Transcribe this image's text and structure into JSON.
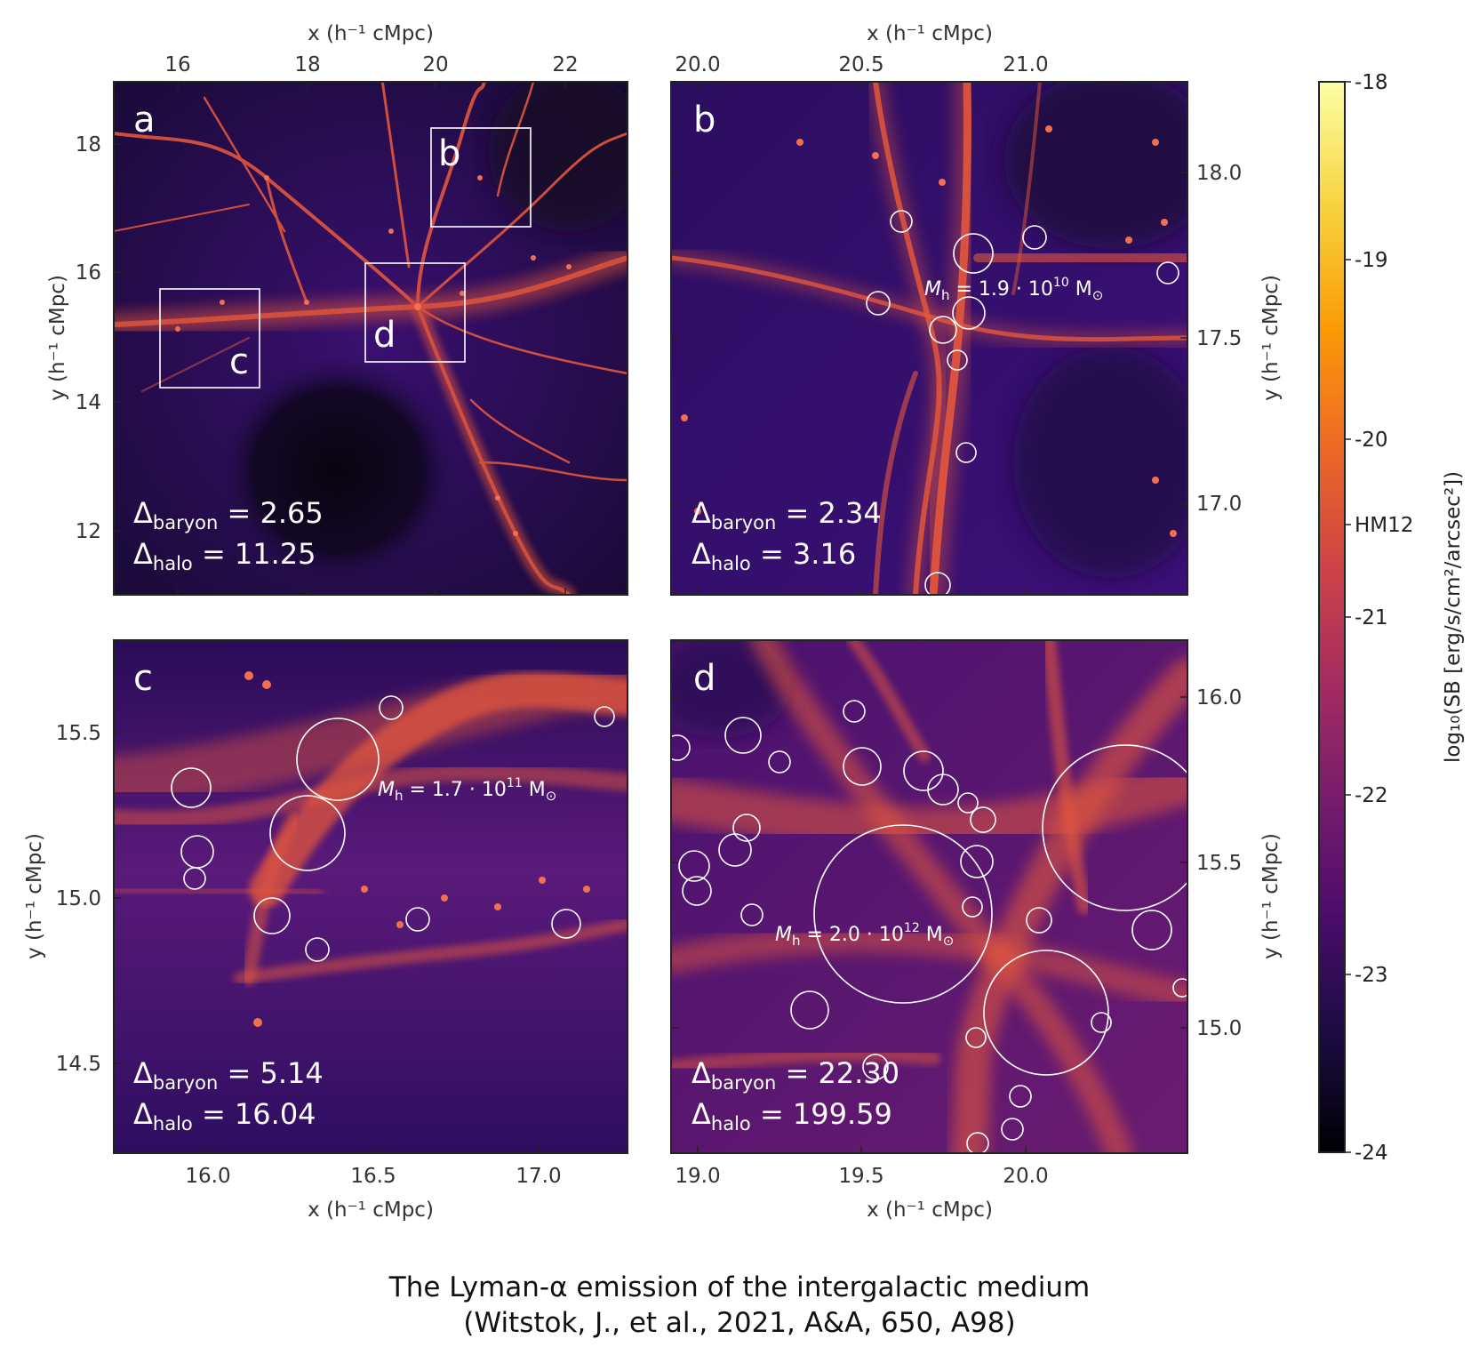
{
  "axis_labels": {
    "x": "x (h⁻¹ cMpc)",
    "y": "y (h⁻¹ cMpc)"
  },
  "panels": {
    "a": {
      "letter": "a",
      "x_ticks": [
        "16",
        "18",
        "20",
        "22"
      ],
      "y_ticks": [
        "18",
        "16",
        "14",
        "12"
      ],
      "delta_baryon": "2.65",
      "delta_halo": "11.25",
      "box_labels": [
        "b",
        "c",
        "d"
      ]
    },
    "b": {
      "letter": "b",
      "x_ticks": [
        "20.0",
        "20.5",
        "21.0"
      ],
      "y_ticks": [
        "18.0",
        "17.5",
        "17.0"
      ],
      "delta_baryon": "2.34",
      "delta_halo": "3.16",
      "mass_mantissa": "1.9",
      "mass_exponent": "10"
    },
    "c": {
      "letter": "c",
      "x_ticks": [
        "16.0",
        "16.5",
        "17.0"
      ],
      "y_ticks": [
        "15.5",
        "15.0",
        "14.5"
      ],
      "delta_baryon": "5.14",
      "delta_halo": "16.04",
      "mass_mantissa": "1.7",
      "mass_exponent": "11"
    },
    "d": {
      "letter": "d",
      "x_ticks": [
        "19.0",
        "19.5",
        "20.0"
      ],
      "y_ticks": [
        "16.0",
        "15.5",
        "15.0"
      ],
      "delta_baryon": "22.30",
      "delta_halo": "199.59",
      "mass_mantissa": "2.0",
      "mass_exponent": "12"
    }
  },
  "colorbar": {
    "label": "log₁₀(SB [erg/s/cm²/arcsec²])",
    "ticks": [
      "-18",
      "-19",
      "-20",
      "HM12",
      "-21",
      "-22",
      "-23",
      "-24"
    ],
    "colormap": [
      "#000004",
      "#1b0c41",
      "#4a0c6b",
      "#781c6d",
      "#a52c60",
      "#cf4446",
      "#ed6925",
      "#fb9b06",
      "#f7d13d",
      "#fcffa4"
    ]
  },
  "mass_symbol": {
    "prefix": "M",
    "subscript": "h",
    "unit": "M",
    "unit_subscript": "⊙"
  },
  "delta_labels": {
    "symbol": "Δ",
    "baryon": "baryon",
    "halo": "halo"
  },
  "caption": {
    "line1": "The Lyman-α emission of the intergalactic medium",
    "line2": "(Witstok, J., et al., 2021, A&A, 650, A98)"
  }
}
